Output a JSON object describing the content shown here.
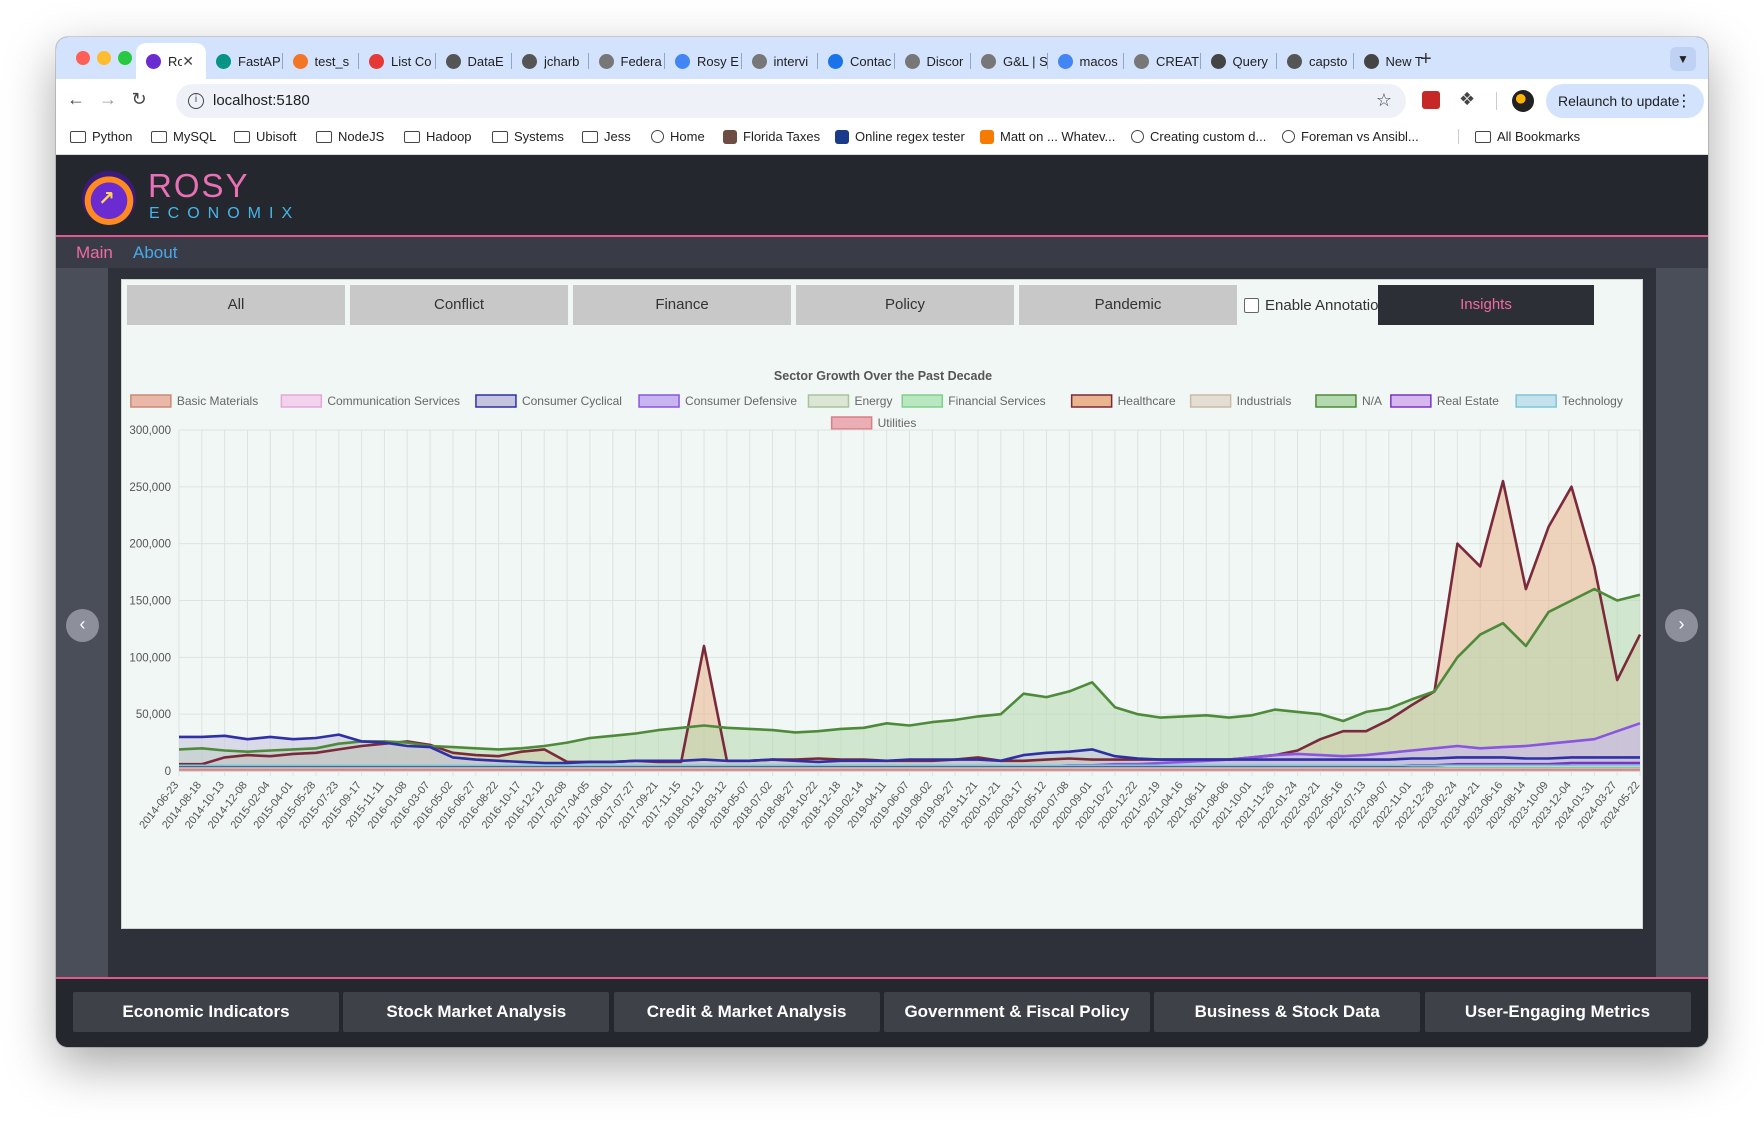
{
  "browser": {
    "tabs": [
      {
        "label": "Ro",
        "icon": "rosy-icon",
        "color": "#6a2bd1",
        "active": true
      },
      {
        "label": "FastAP",
        "icon": "fastapi-icon",
        "color": "#059486"
      },
      {
        "label": "test_s",
        "icon": "jupyter-icon",
        "color": "#f37626"
      },
      {
        "label": "List Co",
        "icon": "cursor-icon",
        "color": "#e53935"
      },
      {
        "label": "DataE",
        "icon": "github-icon",
        "color": "#555555"
      },
      {
        "label": "jcharb",
        "icon": "github-icon",
        "color": "#555555"
      },
      {
        "label": "Federa",
        "icon": "site-icon",
        "color": "#777777"
      },
      {
        "label": "Rosy E",
        "icon": "docs-icon",
        "color": "#4285f4"
      },
      {
        "label": "intervi",
        "icon": "site-icon",
        "color": "#777777"
      },
      {
        "label": "Contac",
        "icon": "site-icon",
        "color": "#1a73e8"
      },
      {
        "label": "Discor",
        "icon": "site-icon",
        "color": "#777777"
      },
      {
        "label": "G&L | S",
        "icon": "site-icon",
        "color": "#777777"
      },
      {
        "label": "macos",
        "icon": "google-icon",
        "color": "#4285f4"
      },
      {
        "label": "CREAT",
        "icon": "site-icon",
        "color": "#777777"
      },
      {
        "label": "Query",
        "icon": "cat-icon",
        "color": "#444444"
      },
      {
        "label": "capsto",
        "icon": "github-icon",
        "color": "#555555"
      },
      {
        "label": "New T",
        "icon": "chrome-icon",
        "color": "#444444"
      }
    ],
    "url": "localhost:5180",
    "relaunch_label": "Relaunch to update",
    "bookmarks": [
      {
        "label": "Python",
        "kind": "folder"
      },
      {
        "label": "MySQL",
        "kind": "folder"
      },
      {
        "label": "Ubisoft",
        "kind": "folder"
      },
      {
        "label": "NodeJS",
        "kind": "folder"
      },
      {
        "label": "Hadoop",
        "kind": "folder"
      },
      {
        "label": "Systems",
        "kind": "folder"
      },
      {
        "label": "Jess",
        "kind": "folder"
      },
      {
        "label": "Home",
        "kind": "globe"
      },
      {
        "label": "Florida Taxes",
        "kind": "site"
      },
      {
        "label": "Online regex tester",
        "kind": "site"
      },
      {
        "label": "Matt on ... Whatev...",
        "kind": "site"
      },
      {
        "label": "Creating custom d...",
        "kind": "globe"
      },
      {
        "label": "Foreman vs Ansibl...",
        "kind": "globe"
      }
    ],
    "all_bookmarks_label": "All Bookmarks"
  },
  "app": {
    "brand_line1": "ROSY",
    "brand_line2": "ECONOMIX",
    "nav": {
      "main": "Main",
      "about": "About"
    },
    "category_tabs": [
      "All",
      "Conflict",
      "Finance",
      "Policy",
      "Pandemic"
    ],
    "annotations_label": "Enable Annotations",
    "insights_label": "Insights",
    "carousel": {
      "count": 7,
      "active_index": 4
    },
    "footer_buttons": [
      "Economic Indicators",
      "Stock Market Analysis",
      "Credit & Market Analysis",
      "Government & Fiscal Policy",
      "Business & Stock Data",
      "User-Engaging Metrics"
    ]
  },
  "chart_data": {
    "type": "area",
    "title": "Sector Growth Over the Past Decade",
    "ylim": [
      0,
      300000
    ],
    "y_ticks": [
      "0",
      "50,000",
      "100,000",
      "150,000",
      "200,000",
      "250,000",
      "300,000"
    ],
    "grid": true,
    "legend_placement": "top",
    "x": [
      "2014-06-23",
      "2014-08-18",
      "2014-10-13",
      "2014-12-08",
      "2015-02-04",
      "2015-04-01",
      "2015-05-28",
      "2015-07-23",
      "2015-09-17",
      "2015-11-11",
      "2016-01-08",
      "2016-03-07",
      "2016-05-02",
      "2016-06-27",
      "2016-08-22",
      "2016-10-17",
      "2016-12-12",
      "2017-02-08",
      "2017-04-05",
      "2017-06-01",
      "2017-07-27",
      "2017-09-21",
      "2017-11-15",
      "2018-01-12",
      "2018-03-12",
      "2018-05-07",
      "2018-07-02",
      "2018-08-27",
      "2018-10-22",
      "2018-12-18",
      "2019-02-14",
      "2019-04-11",
      "2019-06-07",
      "2019-08-02",
      "2019-09-27",
      "2019-11-21",
      "2020-01-21",
      "2020-03-17",
      "2020-05-12",
      "2020-07-08",
      "2020-09-01",
      "2020-10-27",
      "2020-12-22",
      "2021-02-19",
      "2021-04-16",
      "2021-06-11",
      "2021-08-06",
      "2021-10-01",
      "2021-11-26",
      "2022-01-24",
      "2022-03-21",
      "2022-05-16",
      "2022-07-13",
      "2022-09-07",
      "2022-11-01",
      "2022-12-28",
      "2023-02-24",
      "2023-04-21",
      "2023-06-16",
      "2023-08-14",
      "2023-10-09",
      "2023-12-04",
      "2024-01-31",
      "2024-03-27",
      "2024-05-22"
    ],
    "series": [
      {
        "name": "Basic Materials",
        "fill": "#e9b8a8",
        "stroke": "#c98a78",
        "values": [
          1000,
          1000,
          1000,
          1000,
          1000,
          1000,
          1000,
          1000,
          1000,
          1000,
          1000,
          1000,
          1000,
          1000,
          1000,
          1000,
          1000,
          1000,
          1000,
          1000,
          1000,
          1000,
          1000,
          1000,
          1000,
          1000,
          1000,
          1000,
          1000,
          1000,
          1000,
          1000,
          1000,
          1000,
          1000,
          1000,
          1000,
          1000,
          1000,
          1000,
          1000,
          1000,
          1000,
          1000,
          1000,
          1000,
          1000,
          1000,
          1000,
          1000,
          1000,
          1000,
          1000,
          1000,
          1000,
          1000,
          1000,
          1000,
          1000,
          1000,
          1000,
          1000,
          1000,
          1000,
          1000
        ]
      },
      {
        "name": "Communication Services",
        "fill": "#f2d2ec",
        "stroke": "#e6a8d8",
        "values": [
          1000,
          1000,
          1000,
          1000,
          1000,
          1000,
          1000,
          1000,
          1000,
          1000,
          1000,
          1000,
          1000,
          1000,
          1000,
          1000,
          1000,
          1000,
          1000,
          1000,
          1000,
          1000,
          1000,
          1000,
          1000,
          1000,
          1000,
          1000,
          1000,
          1000,
          1000,
          1000,
          1000,
          1000,
          1000,
          1000,
          1000,
          1000,
          1000,
          1000,
          1000,
          1000,
          1000,
          1000,
          1000,
          1000,
          1000,
          1000,
          1000,
          1000,
          1000,
          1000,
          1000,
          1000,
          1000,
          1000,
          1000,
          1000,
          1000,
          1000,
          1000,
          1000,
          1000,
          1000,
          1000
        ]
      },
      {
        "name": "Consumer Cyclical",
        "fill": "#c5c3dd",
        "stroke": "#2f2fa8",
        "values": [
          30000,
          30000,
          31000,
          28000,
          30000,
          28000,
          29000,
          32000,
          26000,
          25000,
          22000,
          21000,
          12000,
          10000,
          9000,
          8000,
          7000,
          7000,
          8000,
          8000,
          9000,
          9000,
          9000,
          10000,
          9000,
          9000,
          10000,
          9000,
          8000,
          9000,
          9000,
          9000,
          10000,
          10000,
          10000,
          10000,
          9000,
          14000,
          16000,
          17000,
          19000,
          13000,
          11000,
          10000,
          10000,
          10000,
          10000,
          10000,
          10000,
          10000,
          10000,
          10000,
          10000,
          10000,
          11000,
          11000,
          12000,
          12000,
          12000,
          11000,
          11000,
          12000,
          12000,
          12000,
          12000
        ]
      },
      {
        "name": "Consumer Defensive",
        "fill": "#c9b4f2",
        "stroke": "#8a55e0",
        "values": [
          3000,
          3000,
          3000,
          3000,
          3000,
          3000,
          3000,
          3000,
          3000,
          3000,
          3000,
          3000,
          3000,
          3000,
          3000,
          3000,
          3000,
          3000,
          3000,
          3000,
          3000,
          3000,
          3000,
          3000,
          3000,
          3000,
          3000,
          3000,
          3000,
          3000,
          3000,
          3000,
          3000,
          3000,
          3000,
          3000,
          3000,
          4000,
          4000,
          5000,
          5000,
          6000,
          6000,
          7000,
          8000,
          9000,
          10000,
          12000,
          14000,
          15000,
          14000,
          13000,
          14000,
          16000,
          18000,
          20000,
          22000,
          20000,
          21000,
          22000,
          24000,
          26000,
          28000,
          35000,
          42000
        ]
      },
      {
        "name": "Energy",
        "fill": "#dde6d4",
        "stroke": "#a9c39b",
        "values": [
          2000,
          2000,
          2000,
          2000,
          2000,
          2000,
          2000,
          2000,
          2000,
          2000,
          2000,
          2000,
          2000,
          2000,
          2000,
          2000,
          2000,
          2000,
          2000,
          2000,
          2000,
          2000,
          2000,
          2000,
          2000,
          2000,
          2000,
          2000,
          2000,
          2000,
          2000,
          2000,
          2000,
          2000,
          2000,
          2000,
          2000,
          2000,
          2000,
          2000,
          2000,
          2000,
          2000,
          2000,
          2000,
          2000,
          2000,
          2000,
          2000,
          2000,
          2000,
          2000,
          2000,
          2000,
          2000,
          2000,
          2000,
          2000,
          2000,
          2000,
          2000,
          2000,
          2000,
          2000,
          2000
        ]
      },
      {
        "name": "Financial Services",
        "fill": "#b9e8c0",
        "stroke": "#7fd08c",
        "values": [
          3000,
          3000,
          3000,
          3000,
          3000,
          3000,
          3000,
          3000,
          3000,
          3000,
          3000,
          3000,
          3000,
          3000,
          3000,
          3000,
          3000,
          3000,
          3000,
          3000,
          3000,
          3000,
          3000,
          3000,
          3000,
          3000,
          3000,
          3000,
          3000,
          3000,
          3000,
          3000,
          3000,
          3000,
          3000,
          3000,
          3000,
          3000,
          3000,
          3000,
          3000,
          3000,
          3000,
          3000,
          3000,
          3000,
          3000,
          3000,
          3000,
          3000,
          3000,
          3000,
          3000,
          3000,
          3000,
          3000,
          3000,
          3000,
          3000,
          3000,
          3000,
          3000,
          3000,
          3000,
          3000
        ]
      },
      {
        "name": "Healthcare",
        "fill": "#e9b48e",
        "stroke": "#7a2a3a",
        "values": [
          6000,
          6000,
          12000,
          14000,
          13000,
          15000,
          16000,
          19000,
          22000,
          24000,
          26000,
          23000,
          16000,
          14000,
          13000,
          17000,
          19000,
          8000,
          8000,
          8000,
          9000,
          8000,
          8000,
          110000,
          9000,
          9000,
          10000,
          10000,
          11000,
          10000,
          10000,
          9000,
          9000,
          9000,
          10000,
          12000,
          9000,
          9000,
          10000,
          11000,
          10000,
          10000,
          10000,
          10000,
          10000,
          10000,
          10000,
          12000,
          14000,
          18000,
          28000,
          35000,
          35000,
          45000,
          58000,
          70000,
          200000,
          180000,
          255000,
          160000,
          215000,
          250000,
          180000,
          80000,
          120000
        ]
      },
      {
        "name": "Industrials",
        "fill": "#e4ddd2",
        "stroke": "#c8bca8",
        "values": [
          2000,
          2000,
          2000,
          2000,
          2000,
          2000,
          2000,
          2000,
          2000,
          2000,
          2000,
          2000,
          2000,
          2000,
          2000,
          2000,
          2000,
          2000,
          2000,
          2000,
          2000,
          2000,
          2000,
          2000,
          2000,
          2000,
          2000,
          2000,
          2000,
          2000,
          2000,
          2000,
          2000,
          2000,
          2000,
          2000,
          2000,
          2000,
          2000,
          2000,
          2000,
          2000,
          2000,
          2000,
          2000,
          2000,
          2000,
          2000,
          2000,
          2000,
          2000,
          2000,
          2000,
          2000,
          2000,
          2000,
          2000,
          2000,
          2000,
          2000,
          2000,
          2000,
          2000,
          2000,
          2000
        ]
      },
      {
        "name": "N/A",
        "fill": "#b4d8b0",
        "stroke": "#4e8a3a",
        "values": [
          19000,
          20000,
          18000,
          17000,
          18000,
          19000,
          20000,
          24000,
          26000,
          26000,
          25000,
          22000,
          21000,
          20000,
          19000,
          20000,
          22000,
          25000,
          29000,
          31000,
          33000,
          36000,
          38000,
          40000,
          38000,
          37000,
          36000,
          34000,
          35000,
          37000,
          38000,
          42000,
          40000,
          43000,
          45000,
          48000,
          50000,
          68000,
          65000,
          70000,
          78000,
          56000,
          50000,
          47000,
          48000,
          49000,
          47000,
          49000,
          54000,
          52000,
          50000,
          44000,
          52000,
          55000,
          63000,
          70000,
          100000,
          120000,
          130000,
          110000,
          140000,
          150000,
          160000,
          150000,
          155000
        ]
      },
      {
        "name": "Real Estate",
        "fill": "#d7b8ee",
        "stroke": "#7a33c0",
        "values": [
          4000,
          4000,
          4000,
          4000,
          4000,
          4000,
          4000,
          4000,
          4000,
          4000,
          4000,
          4000,
          4000,
          4000,
          4000,
          4000,
          4000,
          4000,
          4000,
          4000,
          4000,
          4000,
          4000,
          4000,
          4000,
          4000,
          4000,
          4000,
          4000,
          4000,
          4000,
          4000,
          4000,
          4000,
          4000,
          4000,
          4000,
          4000,
          4000,
          4000,
          4000,
          4000,
          4000,
          4000,
          4000,
          4000,
          4000,
          4000,
          4000,
          4000,
          4000,
          4000,
          4000,
          4000,
          5000,
          5000,
          6000,
          6000,
          6000,
          6000,
          6000,
          7000,
          7000,
          7000,
          7000
        ]
      },
      {
        "name": "Technology",
        "fill": "#c4e2ec",
        "stroke": "#7fc4d8",
        "values": [
          5000,
          5000,
          5000,
          5000,
          5000,
          5000,
          5000,
          5000,
          5000,
          5000,
          5000,
          5000,
          5000,
          5000,
          5000,
          5000,
          5000,
          5000,
          5000,
          5000,
          5000,
          5000,
          5000,
          5000,
          5000,
          5000,
          5000,
          5000,
          5000,
          5000,
          5000,
          5000,
          5000,
          5000,
          5000,
          5000,
          5000,
          5000,
          5000,
          5000,
          5000,
          5000,
          5000,
          5000,
          5000,
          5000,
          5000,
          5000,
          5000,
          5000,
          5000,
          5000,
          5000,
          5000,
          5000,
          5000,
          5000,
          5000,
          5000,
          5000,
          5000,
          5000,
          5000,
          5000,
          5000
        ]
      },
      {
        "name": "Utilities",
        "fill": "#eaaeb4",
        "stroke": "#d77e88",
        "values": [
          1000,
          1000,
          1000,
          1000,
          1000,
          1000,
          1000,
          1000,
          1000,
          1000,
          1000,
          1000,
          1000,
          1000,
          1000,
          1000,
          1000,
          1000,
          1000,
          1000,
          1000,
          1000,
          1000,
          1000,
          1000,
          1000,
          1000,
          1000,
          1000,
          1000,
          1000,
          1000,
          1000,
          1000,
          1000,
          1000,
          1000,
          1000,
          1000,
          1000,
          1000,
          1000,
          1000,
          1000,
          1000,
          1000,
          1000,
          1000,
          1000,
          1000,
          1000,
          1000,
          1000,
          1000,
          1000,
          1000,
          1000,
          1000,
          1000,
          1000,
          1000,
          1000,
          1000,
          1000,
          1000
        ]
      }
    ]
  }
}
